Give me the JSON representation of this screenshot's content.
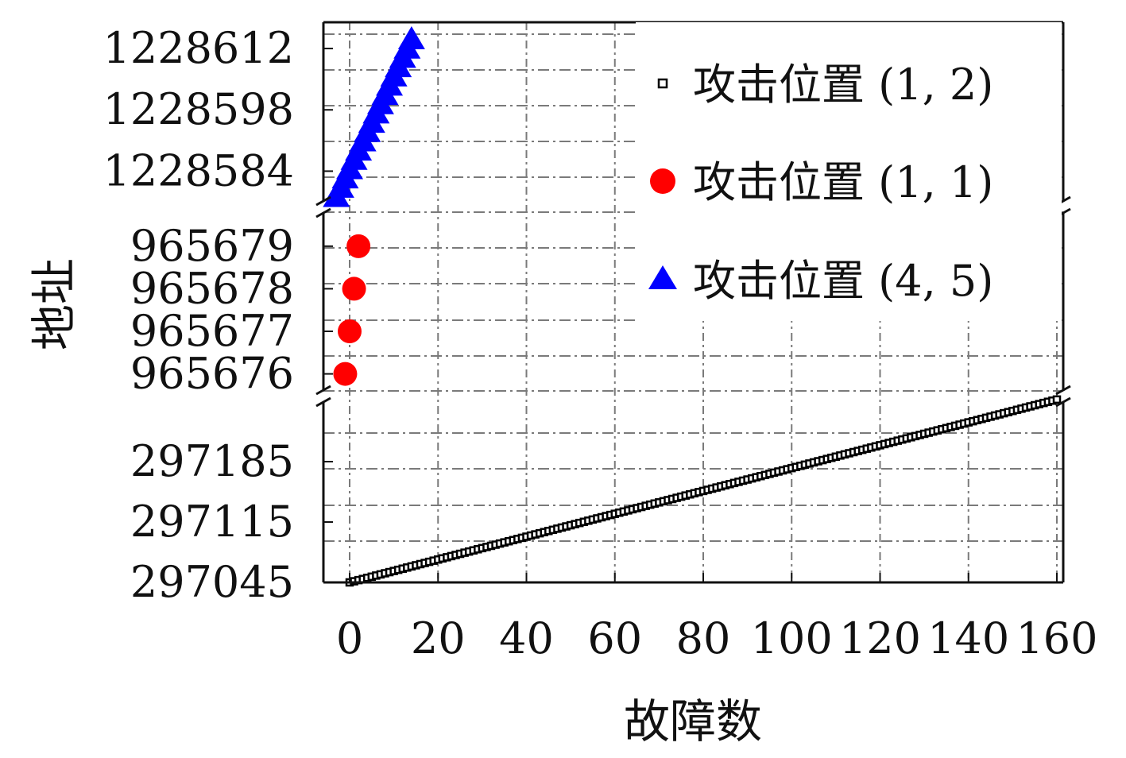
{
  "chart_data": {
    "type": "scatter",
    "xlabel": "故障数",
    "ylabel": "地址",
    "xlim": [
      -6,
      160
    ],
    "x_ticks": [
      0,
      20,
      40,
      60,
      80,
      100,
      120,
      140,
      160
    ],
    "x_tick_labels": [
      "0",
      "20",
      "40",
      "60",
      "80",
      "100",
      "120",
      "140",
      "160"
    ],
    "broken_y_axis": true,
    "grid": true,
    "legend_position": "top-right",
    "y_segments": [
      {
        "name": "lower",
        "ylim": [
          297045,
          297255
        ],
        "ticks": [
          297045,
          297115,
          297185
        ],
        "tick_labels": [
          "297045",
          "297115",
          "297185"
        ]
      },
      {
        "name": "middle",
        "ylim": [
          965675.6,
          965679.8
        ],
        "ticks": [
          965676,
          965677,
          965678,
          965679
        ],
        "tick_labels": [
          "965676",
          "965677",
          "965678",
          "965679"
        ]
      },
      {
        "name": "upper",
        "ylim": [
          1228577,
          1228618
        ],
        "ticks": [
          1228584,
          1228598,
          1228612
        ],
        "tick_labels": [
          "1228584",
          "1228598",
          "1228612"
        ]
      }
    ],
    "series": [
      {
        "name": "攻击位置 (1, 2)",
        "marker": "square",
        "color": "#000000",
        "segment": "lower",
        "x_start": 0,
        "x_end": 160,
        "point_count": 161,
        "y_start": 297045,
        "y_end": 297257
      },
      {
        "name": "攻击位置 (1, 1)",
        "marker": "circle",
        "color": "#ff0000",
        "segment": "middle",
        "x": [
          -1,
          0,
          1,
          2
        ],
        "y": [
          965676,
          965677,
          965678,
          965679
        ]
      },
      {
        "name": "攻击位置 (4, 5)",
        "marker": "triangle",
        "color": "#0000ff",
        "segment": "upper",
        "x_start": -3,
        "x_end": 14,
        "point_count": 18,
        "y_start": 1228578,
        "y_end": 1228614
      }
    ]
  }
}
